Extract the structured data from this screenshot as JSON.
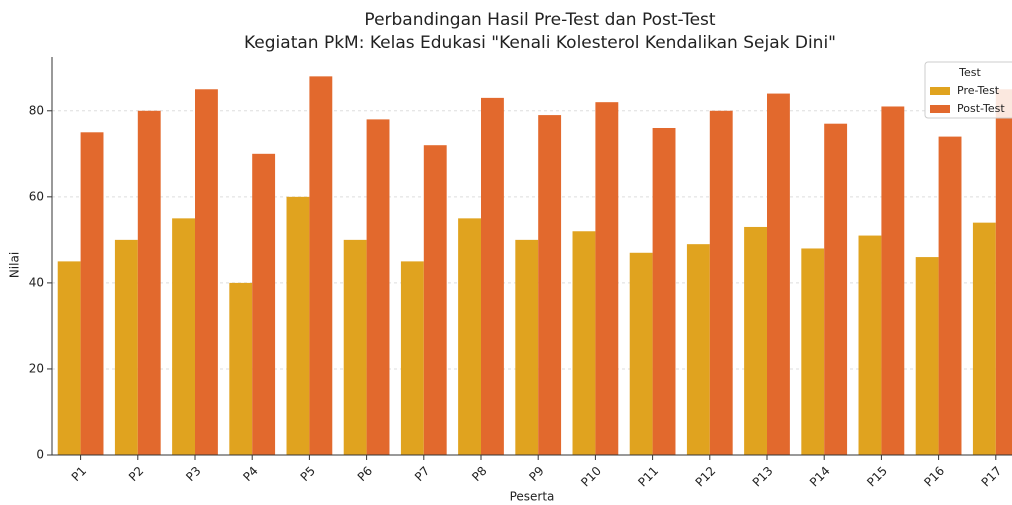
{
  "chart_data": {
    "type": "bar",
    "title": "Perbandingan Hasil Pre-Test dan Post-Test",
    "subtitle": "Kegiatan PkM: Kelas Edukasi \"Kenali Kolesterol Kendalikan Sejak Dini\"",
    "x_label": "Peserta",
    "y_label": "Nilai",
    "legend_title": "Test",
    "legend": "upper right",
    "grid": true,
    "categories": [
      "P1",
      "P2",
      "P3",
      "P4",
      "P5",
      "P6",
      "P7",
      "P8",
      "P9",
      "P10",
      "P11",
      "P12",
      "P13",
      "P14",
      "P15",
      "P16",
      "P17"
    ],
    "series": [
      {
        "name": "Pre-Test",
        "color": "#e0a31f",
        "values": [
          45,
          50,
          55,
          40,
          60,
          50,
          45,
          55,
          50,
          52,
          47,
          49,
          53,
          48,
          51,
          46,
          54
        ]
      },
      {
        "name": "Post-Test",
        "color": "#e2692d",
        "values": [
          75,
          80,
          85,
          70,
          88,
          78,
          72,
          83,
          79,
          82,
          76,
          80,
          84,
          77,
          81,
          74,
          85
        ]
      }
    ],
    "ylim": [
      0,
      92.5
    ],
    "yticks": [
      0,
      20,
      40,
      60,
      80
    ]
  }
}
